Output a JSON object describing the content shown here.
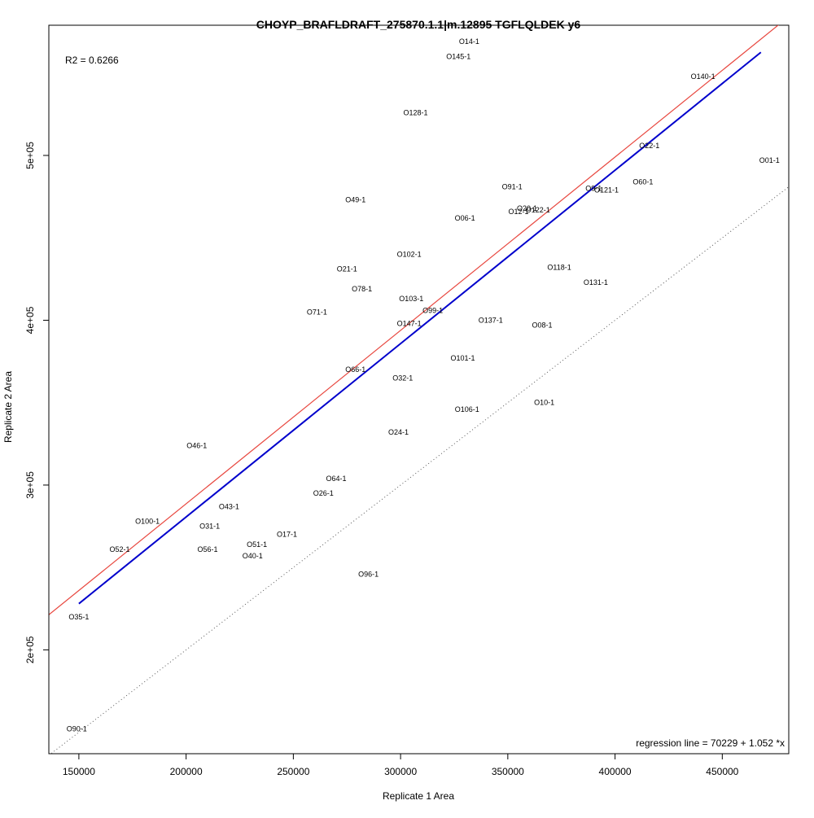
{
  "chart_data": {
    "type": "scatter",
    "title": "CHOYP_BRAFLDRAFT_275870.1.1|m.12895 TGFLQLDEK y6",
    "xlabel": "Replicate 1 Area",
    "ylabel": "Replicate 2 Area",
    "xlim": [
      136000,
      481000
    ],
    "ylim": [
      137000,
      579000
    ],
    "x_ticks": [
      150000,
      200000,
      250000,
      300000,
      350000,
      400000,
      450000
    ],
    "x_tick_labels": [
      "150000",
      "200000",
      "250000",
      "300000",
      "350000",
      "400000",
      "450000"
    ],
    "y_ticks": [
      200000,
      300000,
      400000,
      500000
    ],
    "y_tick_labels": [
      "2e+05",
      "3e+05",
      "4e+05",
      "5e+05"
    ],
    "grid": false,
    "r2_text": "R2 = 0.6266",
    "regression_text": "regression line = 70229 + 1.052 *x",
    "regression_line": {
      "intercept": 70229,
      "slope": 1.052,
      "x_range": [
        150000,
        468000
      ],
      "color": "#0000cc"
    },
    "reference_line": {
      "intercept": 70229,
      "slope": 1.052,
      "offset": 8000,
      "color": "#e8473f"
    },
    "identity_line": {
      "intercept": 0,
      "slope": 1,
      "style": "dotted",
      "color": "#555555"
    },
    "points": [
      {
        "label": "O14-1",
        "x": 332000,
        "y": 569000
      },
      {
        "label": "O145-1",
        "x": 327000,
        "y": 560000
      },
      {
        "label": "O140-1",
        "x": 441000,
        "y": 548000
      },
      {
        "label": "O128-1",
        "x": 307000,
        "y": 526000
      },
      {
        "label": "O22-1",
        "x": 416000,
        "y": 506000
      },
      {
        "label": "O01-1",
        "x": 472000,
        "y": 497000
      },
      {
        "label": "O60-1",
        "x": 413000,
        "y": 484000
      },
      {
        "label": "O91-1",
        "x": 352000,
        "y": 481000
      },
      {
        "label": "O9-1",
        "x": 390000,
        "y": 480000
      },
      {
        "label": "O121-1",
        "x": 396000,
        "y": 479000
      },
      {
        "label": "O49-1",
        "x": 279000,
        "y": 473000
      },
      {
        "label": "O20-1",
        "x": 359000,
        "y": 468000
      },
      {
        "label": "O12-1",
        "x": 355000,
        "y": 466000
      },
      {
        "label": "O122-1",
        "x": 364000,
        "y": 467000
      },
      {
        "label": "O06-1",
        "x": 330000,
        "y": 462000
      },
      {
        "label": "O102-1",
        "x": 304000,
        "y": 440000
      },
      {
        "label": "O118-1",
        "x": 374000,
        "y": 432000
      },
      {
        "label": "O21-1",
        "x": 275000,
        "y": 431000
      },
      {
        "label": "O131-1",
        "x": 391000,
        "y": 423000
      },
      {
        "label": "O78-1",
        "x": 282000,
        "y": 419000
      },
      {
        "label": "O103-1",
        "x": 305000,
        "y": 413000
      },
      {
        "label": "O71-1",
        "x": 261000,
        "y": 405000
      },
      {
        "label": "O99-1",
        "x": 315000,
        "y": 406000
      },
      {
        "label": "O137-1",
        "x": 342000,
        "y": 400000
      },
      {
        "label": "O147-1",
        "x": 304000,
        "y": 398000
      },
      {
        "label": "O08-1",
        "x": 366000,
        "y": 397000
      },
      {
        "label": "O101-1",
        "x": 329000,
        "y": 377000
      },
      {
        "label": "O66-1",
        "x": 279000,
        "y": 370000
      },
      {
        "label": "O32-1",
        "x": 301000,
        "y": 365000
      },
      {
        "label": "O10-1",
        "x": 367000,
        "y": 350000
      },
      {
        "label": "O106-1",
        "x": 331000,
        "y": 346000
      },
      {
        "label": "O24-1",
        "x": 299000,
        "y": 332000
      },
      {
        "label": "O46-1",
        "x": 205000,
        "y": 324000
      },
      {
        "label": "O64-1",
        "x": 270000,
        "y": 304000
      },
      {
        "label": "O26-1",
        "x": 264000,
        "y": 295000
      },
      {
        "label": "O43-1",
        "x": 220000,
        "y": 287000
      },
      {
        "label": "O100-1",
        "x": 182000,
        "y": 278000
      },
      {
        "label": "O31-1",
        "x": 211000,
        "y": 275000
      },
      {
        "label": "O17-1",
        "x": 247000,
        "y": 270000
      },
      {
        "label": "O51-1",
        "x": 233000,
        "y": 264000
      },
      {
        "label": "O52-1",
        "x": 169000,
        "y": 261000
      },
      {
        "label": "O56-1",
        "x": 210000,
        "y": 261000
      },
      {
        "label": "O40-1",
        "x": 231000,
        "y": 257000
      },
      {
        "label": "O96-1",
        "x": 285000,
        "y": 246000
      },
      {
        "label": "O35-1",
        "x": 150000,
        "y": 220000
      },
      {
        "label": "O90-1",
        "x": 149000,
        "y": 152000
      }
    ]
  }
}
